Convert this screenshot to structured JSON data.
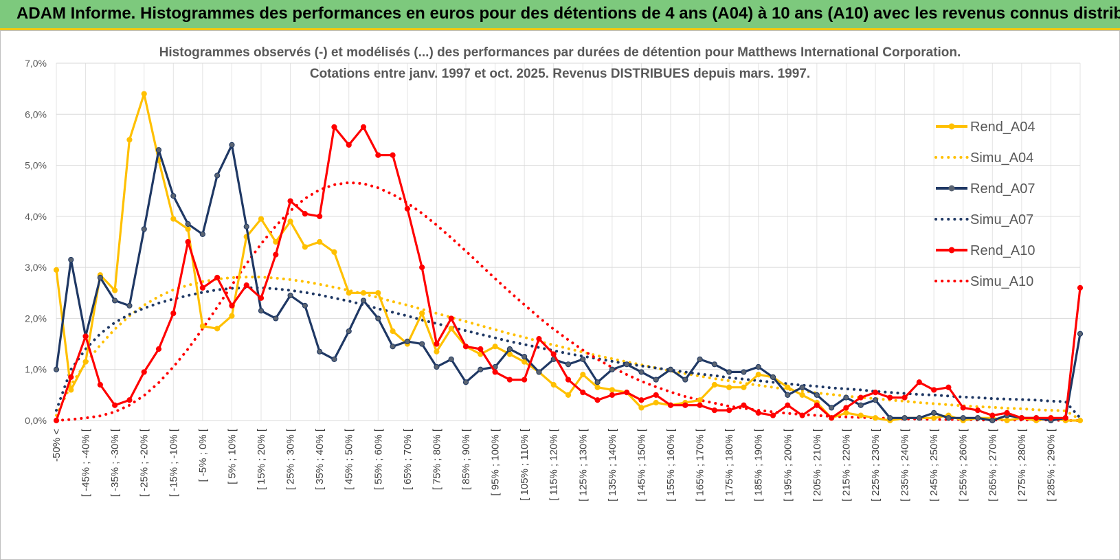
{
  "header": {
    "title": "ADAM Informe. Histogrammes des performances en euros pour des détentions de 4 ans (A04) à 10 ans (A10) avec les revenus connus distribués"
  },
  "colors": {
    "header_bg": "#7dc97d",
    "a04": "#ffc000",
    "a07": "#1f3864",
    "a07_marker": "#5a6472",
    "a10": "#ff0000",
    "grid": "#d9d9d9"
  },
  "chart_data": {
    "type": "line",
    "title_line1": "Histogrammes observés (-) et modélisés (...) des performances par durées de détention pour Matthews International Corporation.",
    "title_line2": "Cotations entre janv. 1997 et oct. 2025.  Revenus DISTRIBUES depuis mars. 1997.",
    "xlabel": "",
    "ylabel": "",
    "ylim": [
      0,
      7
    ],
    "yticks": [
      "0,0%",
      "1,0%",
      "2,0%",
      "3,0%",
      "4,0%",
      "5,0%",
      "6,0%",
      "7,0%"
    ],
    "x_tick_labels": [
      "-50% <",
      "[ -45% ; -40% [",
      "[ -35% ; -30% [",
      "[ -25% ; -20% [",
      "[ -15% ; -10% [",
      "[ -5% ; 0% [",
      "[ 5% ; 10% [",
      "[ 15% ; 20% [",
      "[ 25% ; 30% [",
      "[ 35% ; 40% [",
      "[ 45% ; 50% [",
      "[ 55% ; 60% [",
      "[ 65% ; 70% [",
      "[ 75% ; 80% [",
      "[ 85% ; 90% [",
      "[ 95% ; 100% [",
      "[ 105% ; 110% [",
      "[ 115% ; 120% [",
      "[ 125% ; 130% [",
      "[ 135% ; 140% [",
      "[ 145% ; 150% [",
      "[ 155% ; 160% [",
      "[ 165% ; 170% [",
      "[ 175% ; 180% [",
      "[ 185% ; 190% [",
      "[ 195% ; 200% [",
      "[ 205% ; 210% [",
      "[ 215% ; 220% [",
      "[ 225% ; 230% [",
      "[ 235% ; 240% [",
      "[ 245% ; 250% [",
      "[ 255% ; 260% [",
      "[ 265% ; 270% [",
      "[ 275% ; 280% [",
      "[ 285% ; 290% ["
    ],
    "n_categories": 71,
    "legend_position": "right",
    "series": [
      {
        "name": "Rend_A04",
        "style": "solid",
        "color": "#ffc000",
        "values": [
          2.95,
          0.6,
          1.15,
          2.85,
          2.55,
          5.5,
          6.4,
          5.1,
          3.95,
          3.75,
          1.85,
          1.8,
          2.05,
          3.6,
          3.95,
          3.5,
          3.9,
          3.4,
          3.5,
          3.3,
          2.5,
          2.5,
          2.5,
          1.75,
          1.5,
          2.1,
          1.35,
          1.8,
          1.45,
          1.3,
          1.45,
          1.3,
          1.15,
          0.95,
          0.7,
          0.5,
          0.9,
          0.65,
          0.6,
          0.55,
          0.25,
          0.35,
          0.3,
          0.35,
          0.4,
          0.7,
          0.65,
          0.65,
          0.9,
          0.85,
          0.65,
          0.5,
          0.35,
          0.05,
          0.15,
          0.1,
          0.05,
          0.0,
          0.05,
          0.05,
          0.05,
          0.1,
          0.0,
          0.05,
          0.05,
          0.0,
          0.05,
          0.0,
          0.05,
          0.0,
          0.0
        ]
      },
      {
        "name": "Simu_A04",
        "style": "dotted",
        "color": "#ffc000",
        "values": [
          0.1,
          0.7,
          1.12,
          1.48,
          1.79,
          2.05,
          2.26,
          2.43,
          2.56,
          2.65,
          2.72,
          2.77,
          2.8,
          2.81,
          2.81,
          2.79,
          2.76,
          2.72,
          2.67,
          2.61,
          2.55,
          2.48,
          2.41,
          2.33,
          2.26,
          2.18,
          2.1,
          2.02,
          1.94,
          1.86,
          1.78,
          1.7,
          1.63,
          1.55,
          1.48,
          1.41,
          1.34,
          1.27,
          1.21,
          1.15,
          1.09,
          1.03,
          0.97,
          0.92,
          0.87,
          0.82,
          0.78,
          0.73,
          0.69,
          0.65,
          0.61,
          0.58,
          0.54,
          0.51,
          0.48,
          0.45,
          0.43,
          0.4,
          0.38,
          0.35,
          0.33,
          0.31,
          0.29,
          0.27,
          0.26,
          0.24,
          0.23,
          0.21,
          0.2,
          0.19,
          0.02
        ]
      },
      {
        "name": "Rend_A07",
        "style": "solid",
        "color": "#1f3864",
        "values": [
          1.0,
          3.15,
          1.65,
          2.8,
          2.35,
          2.25,
          3.75,
          5.3,
          4.4,
          3.85,
          3.65,
          4.8,
          5.4,
          3.8,
          2.15,
          2.0,
          2.45,
          2.25,
          1.35,
          1.2,
          1.75,
          2.35,
          2.0,
          1.45,
          1.55,
          1.5,
          1.05,
          1.2,
          0.75,
          1.0,
          1.05,
          1.4,
          1.25,
          0.95,
          1.2,
          1.1,
          1.2,
          0.75,
          1.0,
          1.1,
          0.95,
          0.8,
          1.0,
          0.8,
          1.2,
          1.1,
          0.95,
          0.95,
          1.05,
          0.85,
          0.5,
          0.65,
          0.5,
          0.25,
          0.45,
          0.3,
          0.4,
          0.05,
          0.05,
          0.05,
          0.15,
          0.05,
          0.05,
          0.05,
          0.0,
          0.1,
          0.05,
          0.05,
          0.0,
          0.05,
          1.7
        ]
      },
      {
        "name": "Simu_A07",
        "style": "dotted",
        "color": "#1f3864",
        "values": [
          0.2,
          1.0,
          1.4,
          1.7,
          1.92,
          2.08,
          2.2,
          2.3,
          2.38,
          2.45,
          2.51,
          2.56,
          2.59,
          2.6,
          2.6,
          2.58,
          2.55,
          2.51,
          2.46,
          2.4,
          2.34,
          2.27,
          2.19,
          2.12,
          2.05,
          1.97,
          1.9,
          1.83,
          1.76,
          1.69,
          1.62,
          1.55,
          1.49,
          1.43,
          1.37,
          1.31,
          1.26,
          1.21,
          1.16,
          1.11,
          1.07,
          1.03,
          0.99,
          0.95,
          0.91,
          0.88,
          0.84,
          0.81,
          0.78,
          0.75,
          0.72,
          0.69,
          0.67,
          0.64,
          0.62,
          0.6,
          0.57,
          0.55,
          0.53,
          0.51,
          0.5,
          0.48,
          0.46,
          0.45,
          0.43,
          0.42,
          0.41,
          0.4,
          0.38,
          0.37,
          0.05
        ]
      },
      {
        "name": "Rend_A10",
        "style": "solid",
        "color": "#ff0000",
        "values": [
          0.0,
          0.85,
          1.65,
          0.7,
          0.3,
          0.4,
          0.95,
          1.4,
          2.1,
          3.5,
          2.6,
          2.8,
          2.25,
          2.65,
          2.4,
          3.25,
          4.3,
          4.05,
          4.0,
          5.75,
          5.4,
          5.75,
          5.2,
          5.2,
          4.15,
          3.0,
          1.5,
          2.0,
          1.45,
          1.4,
          0.95,
          0.8,
          0.8,
          1.6,
          1.3,
          0.8,
          0.55,
          0.4,
          0.5,
          0.55,
          0.4,
          0.5,
          0.3,
          0.3,
          0.3,
          0.2,
          0.2,
          0.3,
          0.15,
          0.1,
          0.3,
          0.1,
          0.3,
          0.05,
          0.25,
          0.45,
          0.55,
          0.45,
          0.45,
          0.75,
          0.6,
          0.65,
          0.25,
          0.2,
          0.1,
          0.15,
          0.05,
          0.05,
          0.05,
          0.05,
          2.6
        ]
      },
      {
        "name": "Simu_A10",
        "style": "dotted",
        "color": "#ff0000",
        "values": [
          0.0,
          0.02,
          0.05,
          0.09,
          0.17,
          0.3,
          0.49,
          0.74,
          1.05,
          1.4,
          1.8,
          2.22,
          2.65,
          3.07,
          3.46,
          3.81,
          4.11,
          4.35,
          4.52,
          4.62,
          4.66,
          4.64,
          4.56,
          4.43,
          4.26,
          4.06,
          3.83,
          3.58,
          3.32,
          3.05,
          2.78,
          2.52,
          2.27,
          2.02,
          1.79,
          1.58,
          1.38,
          1.2,
          1.04,
          0.9,
          0.77,
          0.66,
          0.56,
          0.47,
          0.4,
          0.34,
          0.28,
          0.24,
          0.2,
          0.17,
          0.14,
          0.12,
          0.1,
          0.08,
          0.07,
          0.06,
          0.05,
          0.04,
          0.03,
          0.03,
          0.02,
          0.02,
          0.02,
          0.01,
          0.01,
          0.01,
          0.01,
          0.01,
          0.01,
          0.0,
          0.0
        ]
      }
    ]
  }
}
